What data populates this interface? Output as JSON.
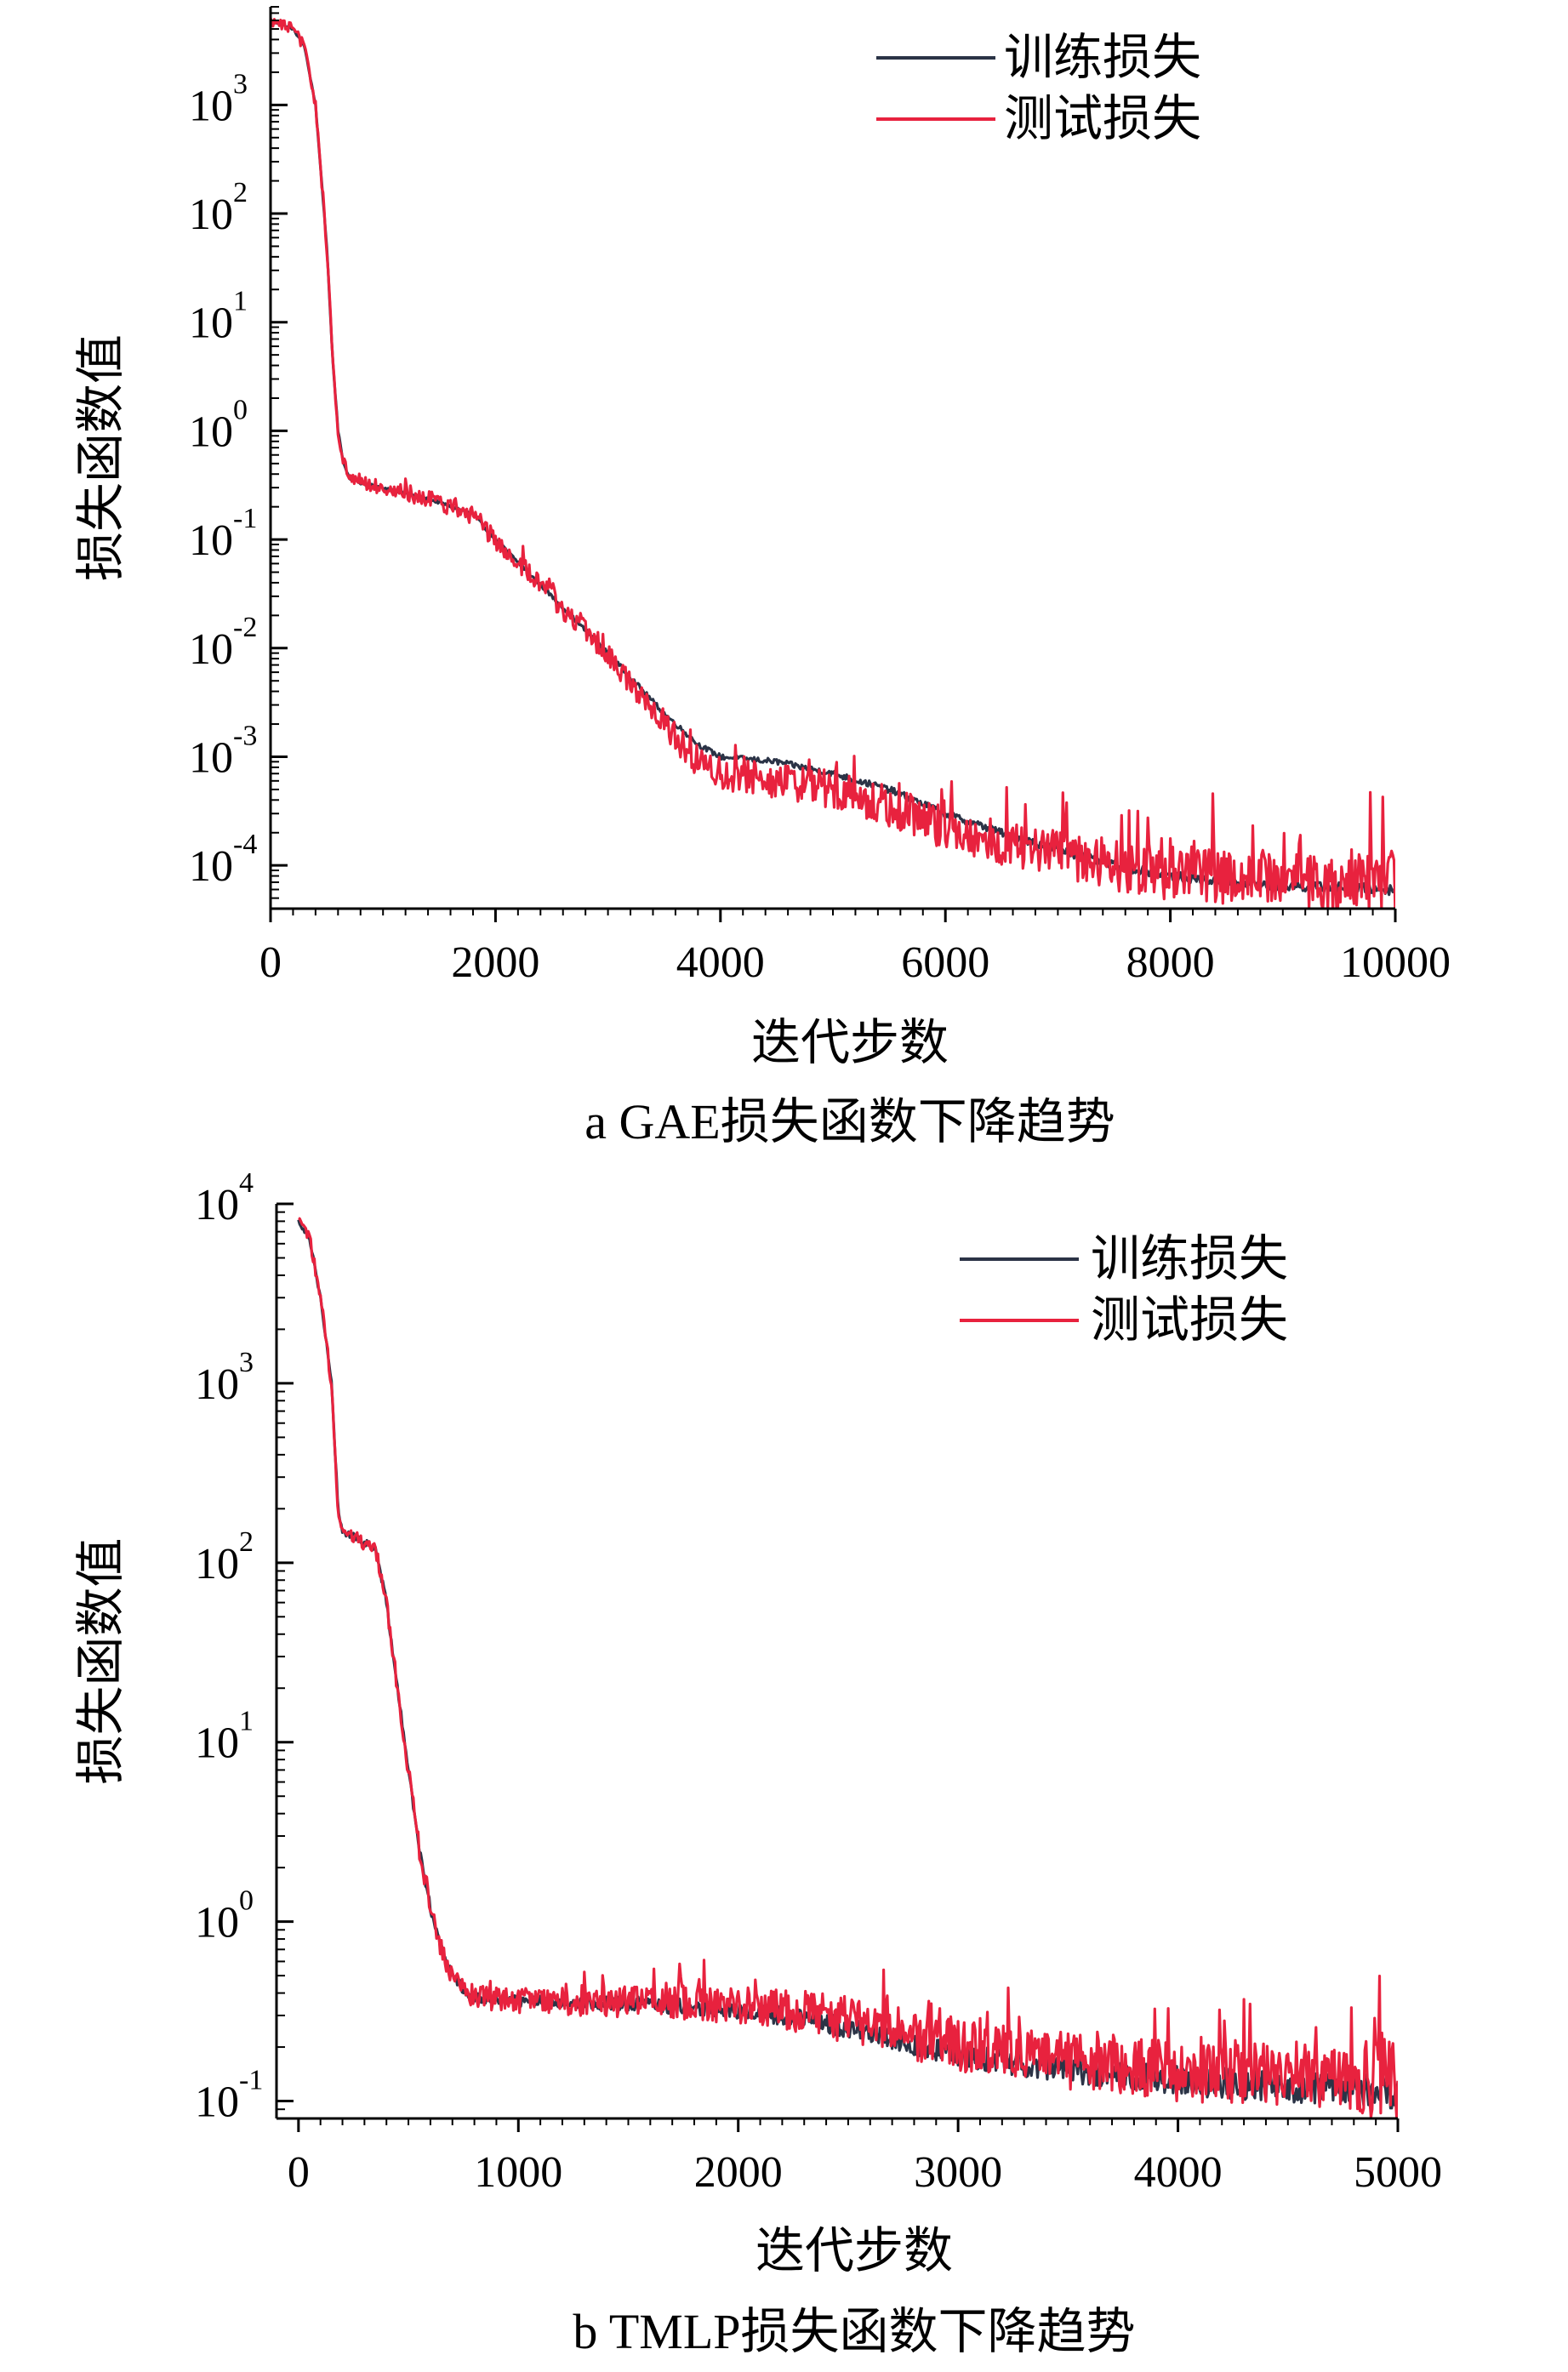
{
  "chart_data": [
    {
      "type": "line",
      "caption": "a  GAE损失函数下降趋势",
      "xlabel": "迭代步数",
      "ylabel": "损失函数值",
      "xscale": "linear",
      "yscale": "log",
      "xlim": [
        0,
        10000
      ],
      "ylim": [
        4e-05,
        8000
      ],
      "xticks": [
        0,
        2000,
        4000,
        6000,
        8000,
        10000
      ],
      "xtick_labels": [
        "0",
        "2000",
        "4000",
        "6000",
        "8000",
        "10000"
      ],
      "yticks": [
        0.0001,
        0.001,
        0.01,
        0.1,
        1,
        10,
        100,
        1000
      ],
      "ytick_labels": [
        {
          "base": "10",
          "exp": "-4"
        },
        {
          "base": "10",
          "exp": "-3"
        },
        {
          "base": "10",
          "exp": "-2"
        },
        {
          "base": "10",
          "exp": "-1"
        },
        {
          "base": "10",
          "exp": "0"
        },
        {
          "base": "10",
          "exp": "1"
        },
        {
          "base": "10",
          "exp": "2"
        },
        {
          "base": "10",
          "exp": "3"
        }
      ],
      "legend_position": "top-right",
      "grid": false,
      "series": [
        {
          "name": "训练损失",
          "color": "#2b3346",
          "noise": 0.05,
          "x": [
            0,
            200,
            300,
            400,
            500,
            550,
            600,
            650,
            700,
            800,
            1000,
            1500,
            1800,
            2000,
            2500,
            3000,
            3500,
            3800,
            4000,
            4500,
            5000,
            5500,
            6000,
            6500,
            7000,
            7500,
            8000,
            8500,
            9000,
            10000
          ],
          "y": [
            6000,
            5000,
            3500,
            1000,
            50,
            5,
            1,
            0.5,
            0.37,
            0.33,
            0.3,
            0.22,
            0.17,
            0.1,
            0.03,
            0.009,
            0.0025,
            0.0013,
            0.001,
            0.0009,
            0.0007,
            0.0005,
            0.0003,
            0.0002,
            0.00014,
            0.0001,
            8e-05,
            7e-05,
            6.5e-05,
            6e-05
          ]
        },
        {
          "name": "测试损失",
          "color": "#e8223e",
          "noise": 0.3,
          "x": [
            0,
            200,
            300,
            400,
            500,
            550,
            600,
            650,
            700,
            800,
            1000,
            1500,
            1800,
            2000,
            2500,
            3000,
            3500,
            3800,
            4000,
            4500,
            5000,
            5500,
            6000,
            6500,
            7000,
            7500,
            8000,
            8500,
            9000,
            10000
          ],
          "y": [
            6000,
            5000,
            3500,
            1000,
            50,
            5,
            1,
            0.5,
            0.37,
            0.33,
            0.3,
            0.22,
            0.17,
            0.1,
            0.03,
            0.009,
            0.002,
            0.0009,
            0.0007,
            0.0006,
            0.0005,
            0.00035,
            0.00022,
            0.00016,
            0.00013,
            0.0001,
            8.5e-05,
            8e-05,
            7.5e-05,
            7e-05
          ]
        }
      ]
    },
    {
      "type": "line",
      "caption": "b  TMLP损失函数下降趋势",
      "xlabel": "迭代步数",
      "ylabel": "损失函数值",
      "xscale": "linear",
      "yscale": "log",
      "xlim": [
        -100,
        5000
      ],
      "ylim": [
        0.08,
        10000
      ],
      "xticks": [
        0,
        1000,
        2000,
        3000,
        4000,
        5000
      ],
      "xtick_labels": [
        "0",
        "1000",
        "2000",
        "3000",
        "4000",
        "5000"
      ],
      "yticks": [
        0.1,
        1,
        10,
        100,
        1000,
        10000
      ],
      "ytick_labels": [
        {
          "base": "10",
          "exp": "-1"
        },
        {
          "base": "10",
          "exp": "0"
        },
        {
          "base": "10",
          "exp": "1"
        },
        {
          "base": "10",
          "exp": "2"
        },
        {
          "base": "10",
          "exp": "3"
        },
        {
          "base": "10",
          "exp": "4"
        }
      ],
      "legend_position": "top-right",
      "grid": false,
      "series": [
        {
          "name": "训练损失",
          "color": "#2b3346",
          "noise": 0.1,
          "x": [
            0,
            50,
            100,
            150,
            180,
            200,
            250,
            300,
            350,
            400,
            450,
            500,
            550,
            600,
            650,
            700,
            750,
            800,
            900,
            1000,
            1500,
            2000,
            2300,
            2600,
            3000,
            3500,
            4000,
            4500,
            5000
          ],
          "y": [
            8000,
            6500,
            3000,
            1000,
            200,
            150,
            140,
            130,
            120,
            60,
            20,
            7,
            2.5,
            1.2,
            0.7,
            0.5,
            0.42,
            0.38,
            0.37,
            0.36,
            0.35,
            0.32,
            0.29,
            0.24,
            0.18,
            0.15,
            0.13,
            0.12,
            0.11
          ]
        },
        {
          "name": "测试损失",
          "color": "#e8223e",
          "noise": 0.22,
          "x": [
            0,
            50,
            100,
            150,
            180,
            200,
            250,
            300,
            350,
            400,
            450,
            500,
            550,
            600,
            650,
            700,
            750,
            800,
            900,
            1000,
            1500,
            2000,
            2300,
            2600,
            3000,
            3500,
            4000,
            4500,
            5000
          ],
          "y": [
            8000,
            6500,
            3000,
            1000,
            200,
            150,
            140,
            130,
            120,
            60,
            20,
            7,
            2.5,
            1.2,
            0.7,
            0.5,
            0.42,
            0.38,
            0.37,
            0.36,
            0.36,
            0.34,
            0.31,
            0.27,
            0.2,
            0.17,
            0.15,
            0.14,
            0.13
          ]
        }
      ]
    }
  ]
}
